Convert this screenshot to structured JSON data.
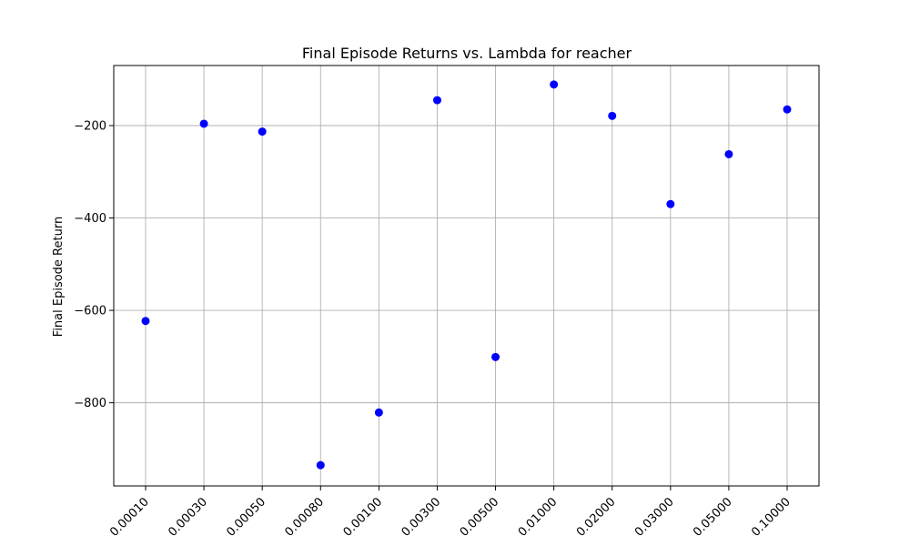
{
  "chart_data": {
    "type": "scatter",
    "title": "Final Episode Returns vs. Lambda for reacher",
    "xlabel": "",
    "ylabel": "Final Episode Return",
    "categories": [
      "0.00010",
      "0.00030",
      "0.00050",
      "0.00080",
      "0.00100",
      "0.00300",
      "0.00500",
      "0.01000",
      "0.02000",
      "0.03000",
      "0.05000",
      "0.10000"
    ],
    "values": [
      -623,
      -196,
      -213,
      -935,
      -821,
      -145,
      -701,
      -111,
      -179,
      -370,
      -262,
      -165
    ],
    "yticks": [
      -800,
      -600,
      -400,
      -200
    ],
    "ytick_labels": [
      "−800",
      "−600",
      "−400",
      "−200"
    ],
    "ylim": [
      -980,
      -70
    ],
    "grid": true,
    "marker_color": "#0000ff"
  }
}
